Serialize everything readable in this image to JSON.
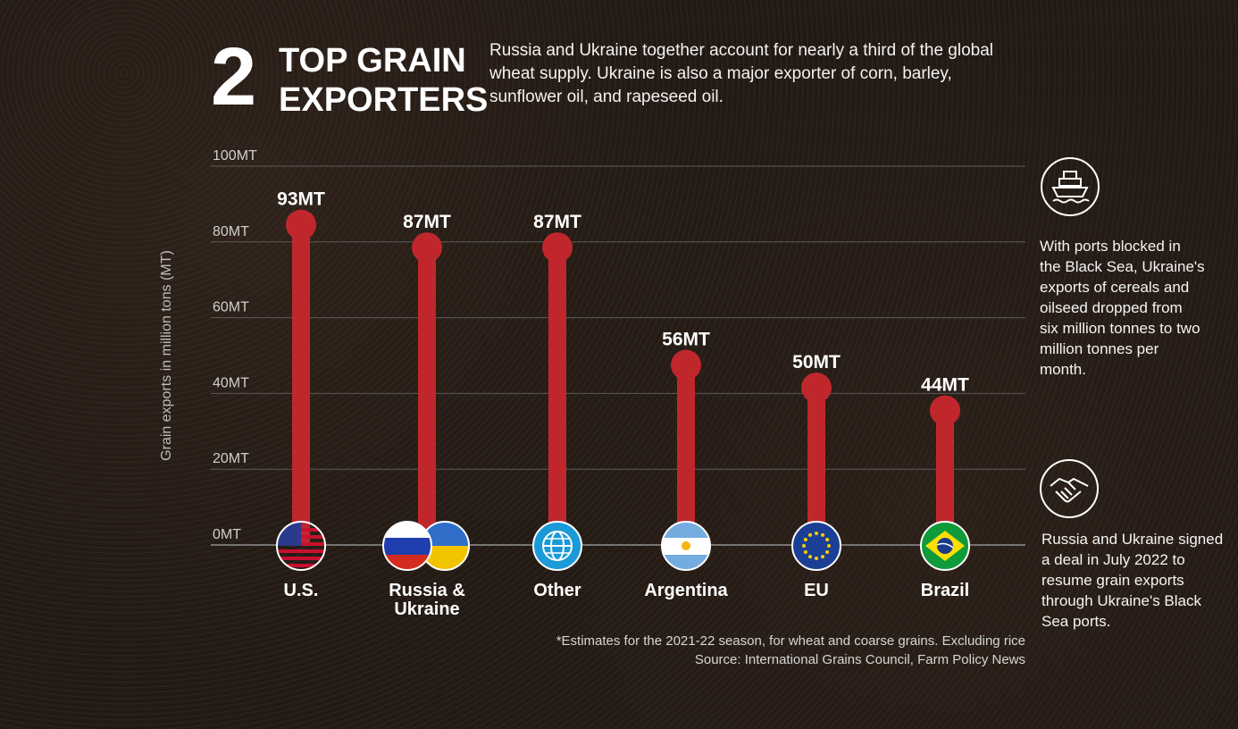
{
  "header": {
    "number": "2",
    "title": "TOP GRAIN EXPORTERS",
    "intro": "Russia and Ukraine together account for nearly a third of the global wheat supply. Ukraine is also a major exporter of corn, barley, sunflower oil, and rapeseed oil."
  },
  "chart_data": {
    "type": "bar",
    "ylabel": "Grain exports in million tons (MT)",
    "ylim": [
      0,
      100
    ],
    "yticks": [
      0,
      20,
      40,
      60,
      80,
      100
    ],
    "ytick_labels": [
      "0MT",
      "20MT",
      "40MT",
      "60MT",
      "80MT",
      "100MT"
    ],
    "categories": [
      "U.S.",
      "Russia & Ukraine",
      "Other",
      "Argentina",
      "EU",
      "Brazil"
    ],
    "category_lines": [
      [
        "U.S."
      ],
      [
        "Russia &",
        "Ukraine"
      ],
      [
        "Other"
      ],
      [
        "Argentina"
      ],
      [
        "EU"
      ],
      [
        "Brazil"
      ]
    ],
    "values": [
      93,
      87,
      87,
      56,
      50,
      44
    ],
    "value_labels": [
      "93MT",
      "87MT",
      "87MT",
      "56MT",
      "50MT",
      "44MT"
    ],
    "grid": true,
    "bar_color": "#c0272d"
  },
  "sidebar": {
    "ports_icon": "ship-icon",
    "ports_text": "With ports blocked in the Black Sea, Ukraine's exports of cereals and oilseed dropped from six million tonnes to two million tonnes per month.",
    "deal_icon": "handshake-icon",
    "deal_text": "Russia and Ukraine signed a deal in July 2022 to resume grain exports through Ukraine's Black Sea ports."
  },
  "footer": {
    "note": "*Estimates for the 2021-22 season, for wheat and coarse grains. Excluding rice",
    "source": "Source: International Grains Council, Farm Policy News"
  }
}
